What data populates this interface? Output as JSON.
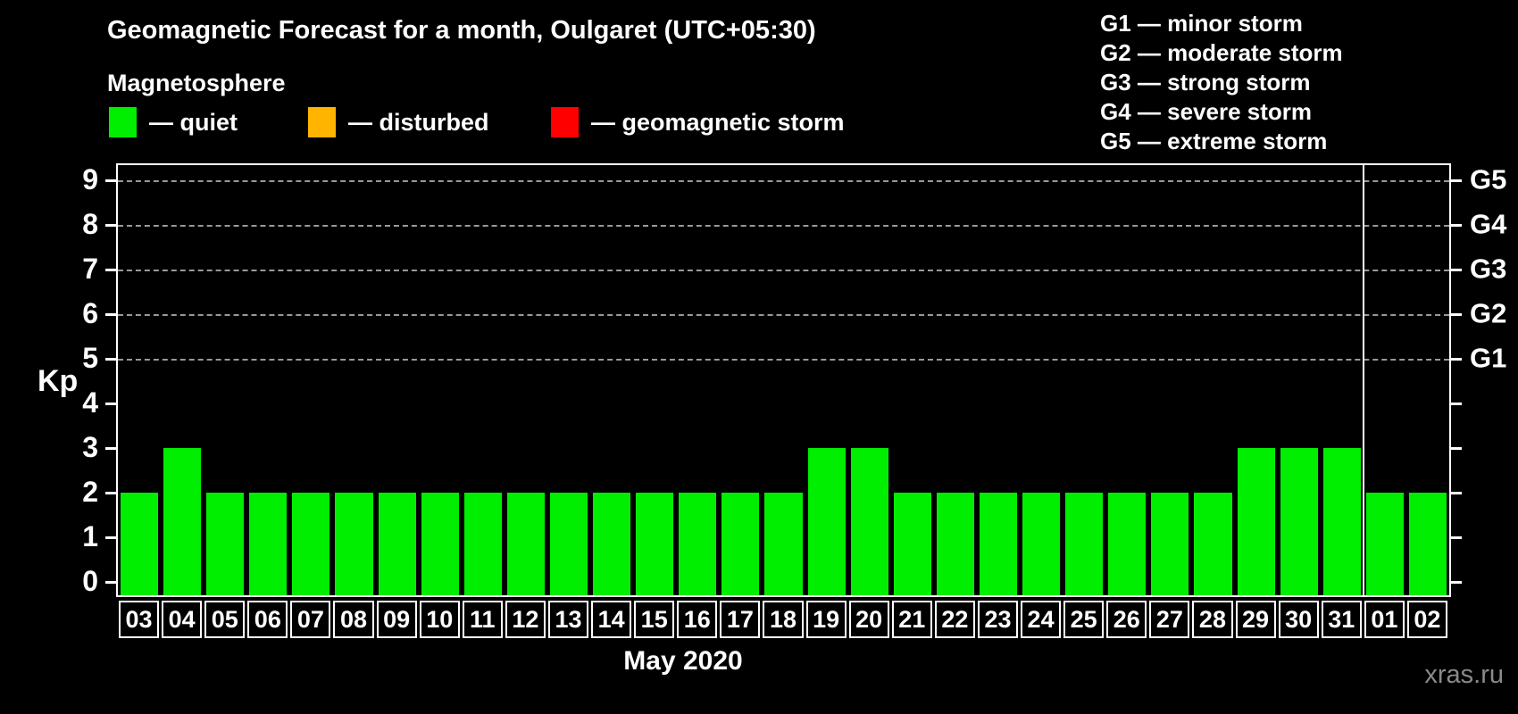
{
  "header": {
    "title": "Geomagnetic Forecast for a month, Oulgaret (UTC+05:30)",
    "subtitle": "Magnetosphere",
    "watermark": "xras.ru"
  },
  "legend": {
    "items": [
      {
        "key": "quiet",
        "label": "— quiet",
        "color": "#00ee00"
      },
      {
        "key": "disturbed",
        "label": "— disturbed",
        "color": "#ffb400"
      },
      {
        "key": "storm",
        "label": "— geomagnetic storm",
        "color": "#ff0000"
      }
    ]
  },
  "g_legend": [
    "G1 — minor storm",
    "G2 — moderate storm",
    "G3 — strong storm",
    "G4 — severe storm",
    "G5 — extreme storm"
  ],
  "chart_data": {
    "type": "bar",
    "title": "Geomagnetic Forecast for a month, Oulgaret (UTC+05:30)",
    "series_name": "Kp forecast",
    "categories": [
      "03",
      "04",
      "05",
      "06",
      "07",
      "08",
      "09",
      "10",
      "11",
      "12",
      "13",
      "14",
      "15",
      "16",
      "17",
      "18",
      "19",
      "20",
      "21",
      "22",
      "23",
      "24",
      "25",
      "26",
      "27",
      "28",
      "29",
      "30",
      "31",
      "01",
      "02"
    ],
    "values": [
      2,
      3,
      2,
      2,
      2,
      2,
      2,
      2,
      2,
      2,
      2,
      2,
      2,
      2,
      2,
      2,
      3,
      3,
      2,
      2,
      2,
      2,
      2,
      2,
      2,
      2,
      3,
      3,
      3,
      2,
      2
    ],
    "xlabel": "May 2020",
    "ylabel": "Kp",
    "ylim": [
      0,
      9.4
    ],
    "yticks": [
      0,
      1,
      2,
      3,
      4,
      5,
      6,
      7,
      8,
      9
    ],
    "gridlines_at": [
      5,
      6,
      7,
      8,
      9
    ],
    "grid_style": "dashed horizontal at storm levels only",
    "right_axis": [
      {
        "kp": 5,
        "label": "G1"
      },
      {
        "kp": 6,
        "label": "G2"
      },
      {
        "kp": 7,
        "label": "G3"
      },
      {
        "kp": 8,
        "label": "G4"
      },
      {
        "kp": 9,
        "label": "G5"
      }
    ],
    "month_separator_after_index": 28,
    "bar_colors": {
      "quiet": "#00ee00",
      "disturbed": "#ffb400",
      "storm": "#ff0000"
    },
    "background_color": "#000000",
    "legend_position": "top-left"
  }
}
